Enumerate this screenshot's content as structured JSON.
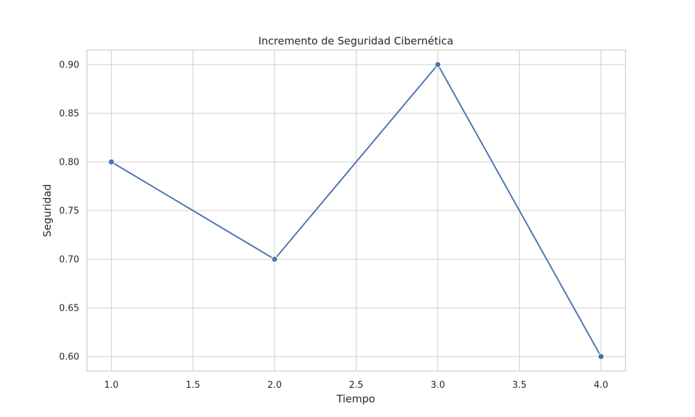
{
  "chart_data": {
    "type": "line",
    "title": "Incremento de Seguridad Cibernética",
    "xlabel": "Tiempo",
    "ylabel": "Seguridad",
    "x": [
      1.0,
      2.0,
      3.0,
      4.0
    ],
    "series": [
      {
        "values": [
          0.8,
          0.7,
          0.9,
          0.6
        ],
        "color": "#4c72b0"
      }
    ],
    "xlim": [
      0.85,
      4.15
    ],
    "ylim": [
      0.585,
      0.915
    ],
    "xticks": [
      1.0,
      1.5,
      2.0,
      2.5,
      3.0,
      3.5,
      4.0
    ],
    "xtick_labels": [
      "1.0",
      "1.5",
      "2.0",
      "2.5",
      "3.0",
      "3.5",
      "4.0"
    ],
    "yticks": [
      0.6,
      0.65,
      0.7,
      0.75,
      0.8,
      0.85,
      0.9
    ],
    "ytick_labels": [
      "0.60",
      "0.65",
      "0.70",
      "0.75",
      "0.80",
      "0.85",
      "0.90"
    ],
    "grid": true,
    "markers": true
  }
}
